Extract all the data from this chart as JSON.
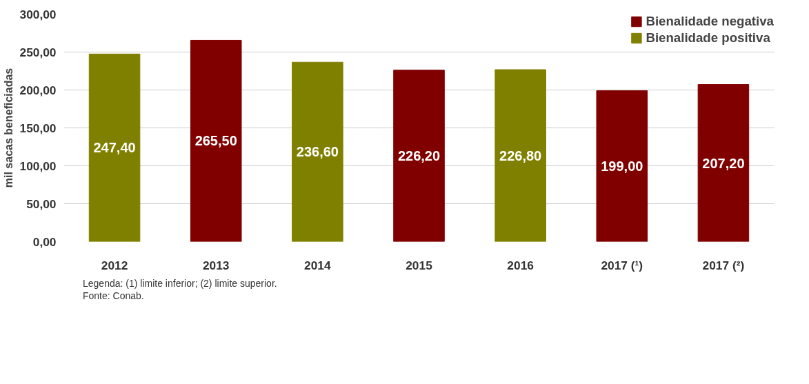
{
  "chart_data": {
    "type": "bar",
    "ylabel": "mil sacas beneficiadas",
    "categories": [
      "2012",
      "2013",
      "2014",
      "2015",
      "2016",
      "2017 (¹)",
      "2017 (²)"
    ],
    "series": [
      {
        "name": "Bienalidade negativa",
        "color": "#800000",
        "values": [
          null,
          265.5,
          null,
          226.2,
          null,
          199.0,
          207.2
        ],
        "value_labels": [
          null,
          "265,50",
          null,
          "226,20",
          null,
          "199,00",
          "207,20"
        ]
      },
      {
        "name": "Bienalidade positiva",
        "color": "#808000",
        "values": [
          247.4,
          null,
          236.6,
          null,
          226.8,
          null,
          null
        ],
        "value_labels": [
          "247,40",
          null,
          "236,60",
          null,
          "226,80",
          null,
          null
        ]
      }
    ],
    "ylim": [
      0,
      300
    ],
    "yticks": [
      {
        "value": 0,
        "label": "0,00"
      },
      {
        "value": 50,
        "label": "50,00"
      },
      {
        "value": 100,
        "label": "100,00"
      },
      {
        "value": 150,
        "label": "150,00"
      },
      {
        "value": 200,
        "label": "200,00"
      },
      {
        "value": 250,
        "label": "250,00"
      },
      {
        "value": 300,
        "label": "300,00"
      }
    ],
    "grid": "y",
    "legend": "top right",
    "annotations": [
      "Legenda: (1) limite inferior; (2) limite superior.",
      "Fonte: Conab."
    ]
  }
}
